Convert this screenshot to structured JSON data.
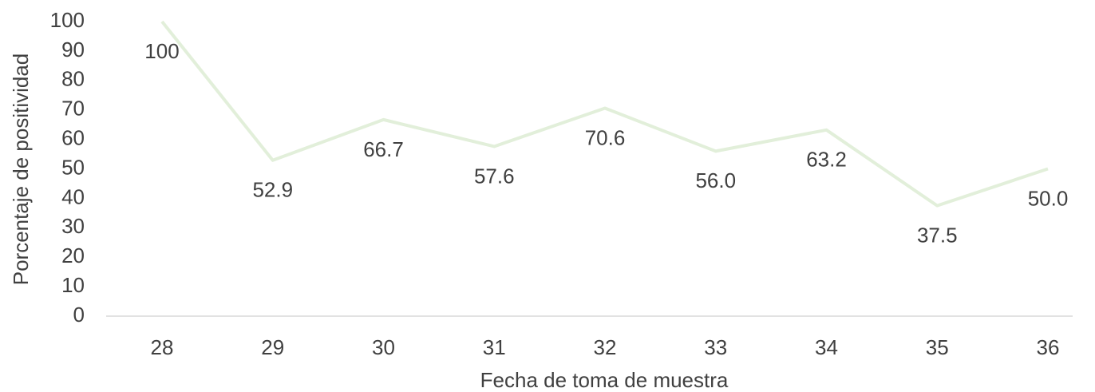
{
  "chart_data": {
    "type": "line",
    "x_label": "Fecha de toma de muestra",
    "y_label": "Porcentaje de positividad",
    "categories": [
      "28",
      "29",
      "30",
      "31",
      "32",
      "33",
      "34",
      "35",
      "36"
    ],
    "series": [
      {
        "color": "#e2efda",
        "values": [
          100,
          52.9,
          66.7,
          57.6,
          70.6,
          56.0,
          63.2,
          37.5,
          50.0
        ],
        "value_labels": [
          "100",
          "52.9",
          "66.7",
          "57.6",
          "70.6",
          "56.0",
          "63.2",
          "37.5",
          "50.0"
        ]
      }
    ],
    "ylim": [
      0,
      100
    ],
    "yticks": [
      0,
      10,
      20,
      30,
      40,
      50,
      60,
      70,
      80,
      90,
      100
    ]
  }
}
